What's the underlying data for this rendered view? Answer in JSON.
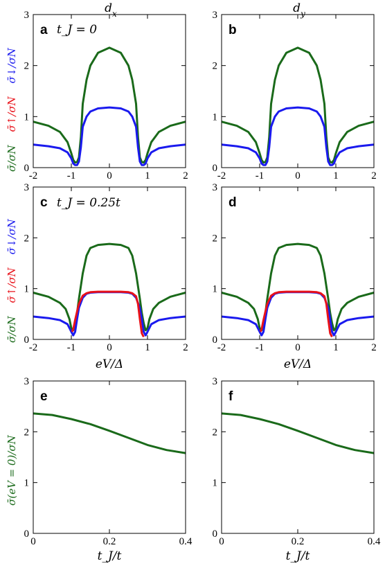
{
  "columns": [
    {
      "title": "d_x"
    },
    {
      "title": "d_y"
    }
  ],
  "x_axis_labels": {
    "spectra": "eV/Δ",
    "zero_bias": "t_J/t"
  },
  "y_axis_labels": {
    "total": {
      "text": "σ̄/σN",
      "color": "#1a6a1a"
    },
    "up": {
      "text": "σ̄↑/σN",
      "color": "#e8121a"
    },
    "down": {
      "text": "σ̄↓/σN",
      "color": "#1a1aee"
    },
    "zero_bias": {
      "text": "σ̄(eV = 0)/σN",
      "color": "#1a6a1a"
    }
  },
  "panel_labels": [
    "a",
    "b",
    "c",
    "d",
    "e",
    "f"
  ],
  "annotations": {
    "row1": "t_J = 0",
    "row2": "t_J = 0.25t"
  },
  "colors": {
    "total": "#1a6a1a",
    "up": "#e8121a",
    "down": "#1a1aee"
  },
  "chart_data": [
    {
      "panel": "a",
      "type": "line",
      "xlim": [
        -2,
        2
      ],
      "ylim": [
        0,
        3
      ],
      "xticks": [
        "-2",
        "-1",
        "0",
        "1",
        "2"
      ],
      "yticks": [
        "0",
        "1",
        "2",
        "3"
      ],
      "series": [
        {
          "color": "#1a6a1a",
          "x": [
            -2,
            -1.6,
            -1.3,
            -1.1,
            -1.0,
            -0.95,
            -0.9,
            -0.85,
            -0.8,
            -0.75,
            -0.7,
            -0.6,
            -0.5,
            -0.3,
            0,
            0.3,
            0.5,
            0.6,
            0.7,
            0.75,
            0.8,
            0.85,
            0.9,
            0.95,
            1.0,
            1.1,
            1.3,
            1.6,
            2
          ],
          "y": [
            0.9,
            0.82,
            0.7,
            0.5,
            0.28,
            0.15,
            0.1,
            0.11,
            0.2,
            0.6,
            1.25,
            1.72,
            2.0,
            2.25,
            2.35,
            2.25,
            2.0,
            1.72,
            1.25,
            0.6,
            0.2,
            0.11,
            0.1,
            0.15,
            0.28,
            0.5,
            0.7,
            0.82,
            0.9
          ]
        },
        {
          "color": "#1a1aee",
          "x": [
            -2,
            -1.6,
            -1.3,
            -1.1,
            -1.0,
            -0.95,
            -0.9,
            -0.85,
            -0.8,
            -0.75,
            -0.7,
            -0.6,
            -0.5,
            -0.3,
            0,
            0.3,
            0.5,
            0.6,
            0.7,
            0.75,
            0.8,
            0.85,
            0.9,
            0.95,
            1.0,
            1.1,
            1.3,
            1.6,
            2
          ],
          "y": [
            0.45,
            0.42,
            0.38,
            0.3,
            0.18,
            0.08,
            0.05,
            0.05,
            0.12,
            0.4,
            0.8,
            1.0,
            1.1,
            1.16,
            1.18,
            1.16,
            1.1,
            1.0,
            0.8,
            0.4,
            0.12,
            0.05,
            0.05,
            0.08,
            0.18,
            0.3,
            0.38,
            0.42,
            0.45
          ]
        }
      ]
    },
    {
      "panel": "b",
      "type": "line",
      "xlim": [
        -2,
        2
      ],
      "ylim": [
        0,
        3
      ],
      "xticks": [
        "-2",
        "-1",
        "0",
        "1",
        "2"
      ],
      "yticks": [
        "0",
        "1",
        "2",
        "3"
      ],
      "series": [
        {
          "color": "#1a6a1a",
          "x": [
            -2,
            -1.6,
            -1.3,
            -1.1,
            -1.0,
            -0.95,
            -0.9,
            -0.85,
            -0.8,
            -0.75,
            -0.7,
            -0.6,
            -0.5,
            -0.3,
            0,
            0.3,
            0.5,
            0.6,
            0.7,
            0.75,
            0.8,
            0.85,
            0.9,
            0.95,
            1.0,
            1.1,
            1.3,
            1.6,
            2
          ],
          "y": [
            0.9,
            0.82,
            0.7,
            0.5,
            0.28,
            0.15,
            0.1,
            0.11,
            0.2,
            0.6,
            1.25,
            1.72,
            2.0,
            2.25,
            2.35,
            2.25,
            2.0,
            1.72,
            1.25,
            0.6,
            0.2,
            0.11,
            0.1,
            0.15,
            0.28,
            0.5,
            0.7,
            0.82,
            0.9
          ]
        },
        {
          "color": "#1a1aee",
          "x": [
            -2,
            -1.6,
            -1.3,
            -1.1,
            -1.0,
            -0.95,
            -0.9,
            -0.85,
            -0.8,
            -0.75,
            -0.7,
            -0.6,
            -0.5,
            -0.3,
            0,
            0.3,
            0.5,
            0.6,
            0.7,
            0.75,
            0.8,
            0.85,
            0.9,
            0.95,
            1.0,
            1.1,
            1.3,
            1.6,
            2
          ],
          "y": [
            0.45,
            0.42,
            0.38,
            0.3,
            0.18,
            0.08,
            0.05,
            0.05,
            0.12,
            0.4,
            0.8,
            1.0,
            1.1,
            1.16,
            1.18,
            1.16,
            1.1,
            1.0,
            0.8,
            0.4,
            0.12,
            0.05,
            0.05,
            0.08,
            0.18,
            0.3,
            0.38,
            0.42,
            0.45
          ]
        }
      ]
    },
    {
      "panel": "c",
      "type": "line",
      "xlim": [
        -2,
        2
      ],
      "ylim": [
        0,
        3
      ],
      "xticks": [
        "-2",
        "-1",
        "0",
        "1",
        "2"
      ],
      "yticks": [
        "0",
        "1",
        "2",
        "3"
      ],
      "series": [
        {
          "color": "#1a6a1a",
          "x": [
            -2,
            -1.6,
            -1.3,
            -1.15,
            -1.05,
            -1.0,
            -0.95,
            -0.9,
            -0.85,
            -0.8,
            -0.7,
            -0.6,
            -0.5,
            -0.3,
            0,
            0.3,
            0.5,
            0.6,
            0.7,
            0.8,
            0.85,
            0.9,
            0.95,
            1.0,
            1.05,
            1.15,
            1.3,
            1.6,
            2
          ],
          "y": [
            0.92,
            0.84,
            0.72,
            0.6,
            0.4,
            0.22,
            0.18,
            0.32,
            0.52,
            0.8,
            1.3,
            1.65,
            1.8,
            1.86,
            1.88,
            1.86,
            1.8,
            1.65,
            1.3,
            0.8,
            0.52,
            0.32,
            0.18,
            0.22,
            0.4,
            0.6,
            0.72,
            0.84,
            0.92
          ]
        },
        {
          "color": "#1a1aee",
          "x": [
            -2,
            -1.6,
            -1.3,
            -1.1,
            -1.0,
            -0.95,
            -0.9,
            -0.85,
            -0.8,
            -0.7,
            -0.6,
            -0.5,
            -0.3,
            0,
            0.3,
            0.5,
            0.6,
            0.7,
            0.8,
            0.85,
            0.9,
            0.95,
            1.0,
            1.1,
            1.3,
            1.6,
            2
          ],
          "y": [
            0.45,
            0.42,
            0.38,
            0.3,
            0.15,
            0.08,
            0.15,
            0.4,
            0.62,
            0.82,
            0.9,
            0.92,
            0.93,
            0.93,
            0.93,
            0.92,
            0.9,
            0.82,
            0.62,
            0.4,
            0.15,
            0.08,
            0.15,
            0.3,
            0.38,
            0.42,
            0.45
          ]
        },
        {
          "color": "#e8121a",
          "x": [
            -0.98,
            -0.95,
            -0.9,
            -0.85,
            -0.8,
            -0.7,
            -0.6,
            -0.5,
            -0.3,
            0,
            0.3,
            0.5,
            0.6,
            0.7,
            0.75,
            0.8,
            0.85,
            0.9
          ],
          "y": [
            0.15,
            0.2,
            0.38,
            0.55,
            0.7,
            0.86,
            0.91,
            0.93,
            0.94,
            0.94,
            0.94,
            0.93,
            0.91,
            0.85,
            0.7,
            0.4,
            0.12,
            0.05
          ]
        }
      ]
    },
    {
      "panel": "d",
      "type": "line",
      "xlim": [
        -2,
        2
      ],
      "ylim": [
        0,
        3
      ],
      "xticks": [
        "-2",
        "-1",
        "0",
        "1",
        "2"
      ],
      "yticks": [
        "0",
        "1",
        "2",
        "3"
      ],
      "series": [
        {
          "color": "#1a6a1a",
          "x": [
            -2,
            -1.6,
            -1.3,
            -1.15,
            -1.05,
            -1.0,
            -0.95,
            -0.9,
            -0.85,
            -0.8,
            -0.7,
            -0.6,
            -0.5,
            -0.3,
            0,
            0.3,
            0.5,
            0.6,
            0.7,
            0.8,
            0.85,
            0.9,
            0.95,
            1.0,
            1.05,
            1.15,
            1.3,
            1.6,
            2
          ],
          "y": [
            0.92,
            0.84,
            0.72,
            0.6,
            0.4,
            0.22,
            0.18,
            0.32,
            0.52,
            0.8,
            1.3,
            1.65,
            1.8,
            1.86,
            1.88,
            1.86,
            1.8,
            1.65,
            1.3,
            0.8,
            0.52,
            0.32,
            0.18,
            0.22,
            0.4,
            0.6,
            0.72,
            0.84,
            0.92
          ]
        },
        {
          "color": "#1a1aee",
          "x": [
            -2,
            -1.6,
            -1.3,
            -1.1,
            -1.0,
            -0.95,
            -0.9,
            -0.85,
            -0.8,
            -0.7,
            -0.6,
            -0.5,
            -0.3,
            0,
            0.3,
            0.5,
            0.6,
            0.7,
            0.8,
            0.85,
            0.9,
            0.95,
            1.0,
            1.1,
            1.3,
            1.6,
            2
          ],
          "y": [
            0.45,
            0.42,
            0.38,
            0.3,
            0.15,
            0.08,
            0.15,
            0.4,
            0.62,
            0.82,
            0.9,
            0.92,
            0.93,
            0.93,
            0.93,
            0.92,
            0.9,
            0.82,
            0.62,
            0.4,
            0.15,
            0.08,
            0.15,
            0.3,
            0.38,
            0.42,
            0.45
          ]
        },
        {
          "color": "#e8121a",
          "x": [
            -0.98,
            -0.95,
            -0.9,
            -0.85,
            -0.8,
            -0.7,
            -0.6,
            -0.5,
            -0.3,
            0,
            0.3,
            0.5,
            0.6,
            0.7,
            0.75,
            0.8,
            0.85,
            0.9
          ],
          "y": [
            0.15,
            0.2,
            0.38,
            0.55,
            0.7,
            0.86,
            0.91,
            0.93,
            0.94,
            0.94,
            0.94,
            0.93,
            0.91,
            0.85,
            0.7,
            0.4,
            0.12,
            0.05
          ]
        }
      ]
    },
    {
      "panel": "e",
      "type": "line",
      "xlim": [
        0,
        0.4
      ],
      "ylim": [
        0,
        3
      ],
      "xticks": [
        "0",
        "0.2",
        "0.4"
      ],
      "yticks": [
        "0",
        "1",
        "2",
        "3"
      ],
      "series": [
        {
          "color": "#1a6a1a",
          "x": [
            0,
            0.05,
            0.1,
            0.15,
            0.2,
            0.25,
            0.3,
            0.35,
            0.4
          ],
          "y": [
            2.36,
            2.33,
            2.25,
            2.15,
            2.02,
            1.88,
            1.74,
            1.64,
            1.58
          ]
        }
      ]
    },
    {
      "panel": "f",
      "type": "line",
      "xlim": [
        0,
        0.4
      ],
      "ylim": [
        0,
        3
      ],
      "xticks": [
        "0",
        "0.2",
        "0.4"
      ],
      "yticks": [
        "0",
        "1",
        "2",
        "3"
      ],
      "series": [
        {
          "color": "#1a6a1a",
          "x": [
            0,
            0.05,
            0.1,
            0.15,
            0.2,
            0.25,
            0.3,
            0.35,
            0.4
          ],
          "y": [
            2.36,
            2.33,
            2.25,
            2.15,
            2.02,
            1.88,
            1.74,
            1.64,
            1.58
          ]
        }
      ]
    }
  ]
}
